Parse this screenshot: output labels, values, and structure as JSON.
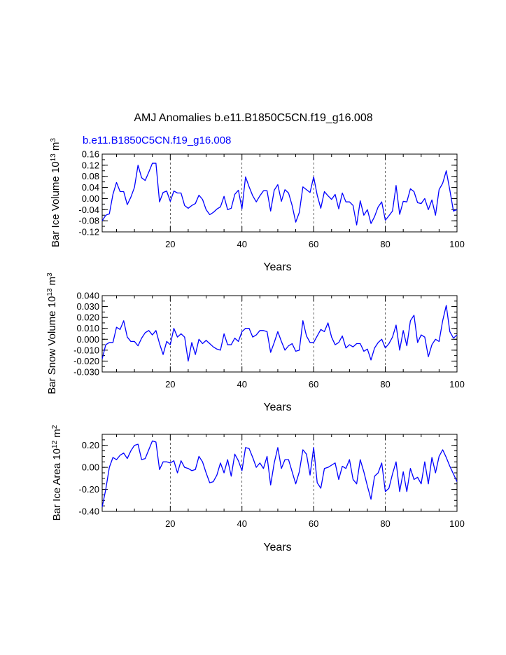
{
  "title": "AMJ Anomalies b.e11.B1850C5CN.f19_g16.008",
  "case_label": "b.e11.B1850C5CN.f19_g16.008",
  "case_color": "#0000ff",
  "line_color": "#0000ff",
  "chart_data": [
    {
      "type": "line",
      "name": "ice-volume",
      "ylabel": {
        "main": "Bar Ice Volume 10",
        "sup1": "13",
        "mid": " m",
        "sup2": "3"
      },
      "xlabel": "Years",
      "xlim": [
        1,
        100
      ],
      "ylim": [
        -0.12,
        0.16
      ],
      "xticks": [
        20,
        40,
        60,
        80,
        100
      ],
      "xtick_labels": [
        "20",
        "40",
        "60",
        "80",
        "100"
      ],
      "yticks": [
        -0.12,
        -0.08,
        -0.04,
        0.0,
        0.04,
        0.08,
        0.12,
        0.16
      ],
      "ytick_labels": [
        "-0.12",
        "-0.08",
        "-0.04",
        "0.00",
        "0.04",
        "0.08",
        "0.12",
        "0.16"
      ],
      "yminor": 0.02,
      "grid_x": [
        20,
        40,
        60,
        80
      ],
      "values": [
        -0.08,
        -0.06,
        -0.055,
        0.015,
        0.058,
        0.025,
        0.025,
        -0.022,
        0.005,
        0.04,
        0.12,
        0.075,
        0.065,
        0.095,
        0.127,
        0.127,
        -0.012,
        0.022,
        0.027,
        -0.01,
        0.027,
        0.02,
        0.02,
        -0.025,
        -0.035,
        -0.025,
        -0.018,
        0.012,
        -0.003,
        -0.04,
        -0.058,
        -0.05,
        -0.038,
        -0.03,
        0.008,
        -0.04,
        -0.035,
        0.015,
        0.03,
        -0.037,
        0.078,
        0.042,
        0.01,
        -0.012,
        0.01,
        0.028,
        0.028,
        -0.045,
        0.03,
        0.05,
        -0.01,
        0.032,
        0.02,
        -0.025,
        -0.085,
        -0.05,
        0.042,
        0.032,
        0.022,
        0.078,
        0.012,
        -0.035,
        0.025,
        0.01,
        -0.003,
        0.015,
        -0.037,
        0.02,
        -0.012,
        -0.012,
        -0.025,
        -0.095,
        -0.008,
        -0.06,
        -0.04,
        -0.09,
        -0.065,
        -0.03,
        -0.012,
        -0.078,
        -0.062,
        -0.045,
        0.047,
        -0.057,
        -0.01,
        -0.012,
        0.035,
        0.025,
        -0.015,
        -0.018,
        0.0,
        -0.04,
        -0.005,
        -0.06,
        0.032,
        0.055,
        0.1,
        0.03,
        -0.045,
        -0.04
      ]
    },
    {
      "type": "line",
      "name": "snow-volume",
      "ylabel": {
        "main": "Bar Snow Volume 10",
        "sup1": "13",
        "mid": " m",
        "sup2": "3"
      },
      "xlabel": "Years",
      "xlim": [
        1,
        100
      ],
      "ylim": [
        -0.03,
        0.04
      ],
      "xticks": [
        20,
        40,
        60,
        80,
        100
      ],
      "xtick_labels": [
        "20",
        "40",
        "60",
        "80",
        "100"
      ],
      "yticks": [
        -0.03,
        -0.02,
        -0.01,
        0.0,
        0.01,
        0.02,
        0.03,
        0.04
      ],
      "ytick_labels": [
        "-0.030",
        "-0.020",
        "-0.010",
        "0.000",
        "0.010",
        "0.020",
        "0.030",
        "0.040"
      ],
      "yminor": 0.005,
      "grid_x": [
        20,
        40,
        60,
        80
      ],
      "values": [
        -0.018,
        -0.005,
        -0.003,
        -0.003,
        0.011,
        0.009,
        0.017,
        0.002,
        -0.002,
        -0.002,
        -0.006,
        0.001,
        0.006,
        0.008,
        0.004,
        0.008,
        -0.004,
        -0.014,
        -0.002,
        -0.005,
        0.01,
        0.002,
        0.005,
        0.002,
        -0.02,
        -0.003,
        -0.014,
        0.0,
        -0.004,
        -0.001,
        -0.004,
        -0.007,
        -0.009,
        -0.01,
        0.005,
        -0.005,
        -0.005,
        0.001,
        -0.002,
        0.007,
        0.01,
        0.01,
        0.002,
        0.004,
        0.008,
        0.008,
        0.007,
        -0.012,
        -0.003,
        0.007,
        -0.002,
        -0.01,
        -0.006,
        -0.004,
        -0.011,
        -0.01,
        0.017,
        0.003,
        -0.003,
        -0.003,
        0.003,
        0.009,
        0.007,
        0.015,
        0.002,
        -0.005,
        -0.003,
        0.003,
        -0.008,
        -0.005,
        -0.007,
        -0.004,
        -0.004,
        -0.011,
        -0.009,
        -0.019,
        -0.008,
        -0.003,
        0.0,
        -0.008,
        -0.004,
        0.002,
        0.013,
        -0.01,
        0.008,
        -0.006,
        0.017,
        0.022,
        -0.003,
        0.004,
        0.002,
        -0.016,
        -0.005,
        0.0,
        -0.002,
        0.017,
        0.031,
        0.007,
        0.001,
        0.004
      ]
    },
    {
      "type": "line",
      "name": "ice-area",
      "ylabel": {
        "main": "Bar Ice Area 10",
        "sup1": "12",
        "mid": " m",
        "sup2": "2"
      },
      "xlabel": "Years",
      "xlim": [
        1,
        100
      ],
      "ylim": [
        -0.4,
        0.3
      ],
      "xticks": [
        20,
        40,
        60,
        80,
        100
      ],
      "xtick_labels": [
        "20",
        "40",
        "60",
        "80",
        "100"
      ],
      "yticks": [
        -0.4,
        -0.2,
        0.0,
        0.2
      ],
      "ytick_labels": [
        "-0.40",
        "-0.20",
        "0.00",
        "0.20"
      ],
      "yminor": 0.05,
      "grid_x": [
        20,
        40,
        60,
        80
      ],
      "values": [
        -0.36,
        -0.2,
        0.0,
        0.09,
        0.07,
        0.11,
        0.13,
        0.08,
        0.15,
        0.2,
        0.21,
        0.07,
        0.08,
        0.16,
        0.24,
        0.23,
        -0.02,
        0.05,
        0.05,
        0.04,
        0.06,
        -0.05,
        0.06,
        0.0,
        -0.01,
        -0.03,
        -0.02,
        0.1,
        0.05,
        -0.05,
        -0.14,
        -0.13,
        -0.07,
        0.04,
        -0.05,
        0.07,
        -0.08,
        0.12,
        0.06,
        -0.03,
        0.18,
        0.17,
        0.09,
        0.0,
        0.04,
        -0.01,
        0.1,
        -0.16,
        0.04,
        0.18,
        -0.01,
        0.07,
        0.07,
        -0.04,
        -0.15,
        -0.04,
        0.16,
        0.12,
        -0.07,
        0.18,
        -0.14,
        -0.19,
        -0.01,
        0.0,
        0.02,
        0.04,
        -0.11,
        0.01,
        -0.01,
        0.07,
        -0.11,
        -0.15,
        0.07,
        -0.04,
        -0.17,
        -0.29,
        -0.08,
        -0.05,
        0.04,
        -0.22,
        -0.19,
        -0.06,
        0.05,
        -0.22,
        -0.04,
        -0.22,
        -0.01,
        -0.11,
        -0.09,
        -0.15,
        0.05,
        -0.15,
        0.09,
        -0.05,
        0.1,
        0.16,
        0.09,
        0.01,
        -0.06,
        -0.13
      ]
    }
  ]
}
